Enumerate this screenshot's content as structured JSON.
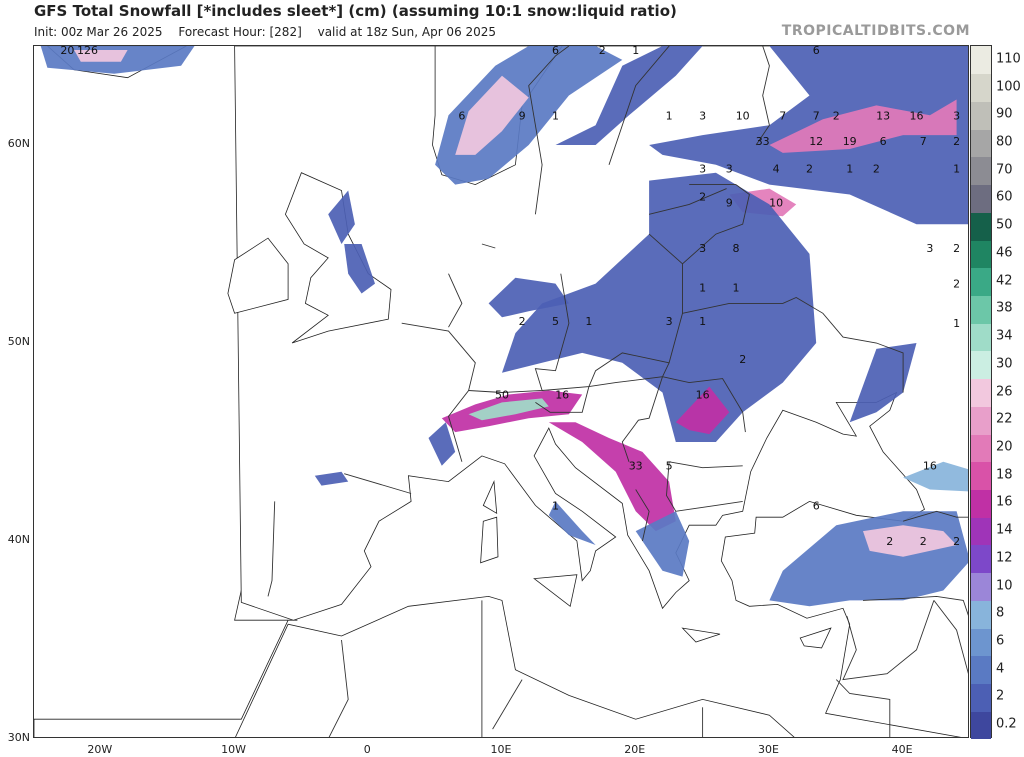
{
  "header": {
    "title": "GFS Total Snowfall [*includes sleet*] (cm) (assuming 10:1 snow:liquid ratio)",
    "init": "Init: 00z Mar 26 2025",
    "forecast_hour": "Forecast Hour: [282]",
    "valid": "valid at 18z Sun, Apr 06 2025",
    "watermark": "TROPICALTIDBITS.COM"
  },
  "map": {
    "lon_range": [
      -25,
      45
    ],
    "lat_range": [
      30,
      65
    ],
    "lat_ticks": [
      {
        "value": 30,
        "label": "30N"
      },
      {
        "value": 40,
        "label": "40N"
      },
      {
        "value": 50,
        "label": "50N"
      },
      {
        "value": 60,
        "label": "60N"
      }
    ],
    "lon_ticks": [
      {
        "value": -20,
        "label": "20W"
      },
      {
        "value": -10,
        "label": "10W"
      },
      {
        "value": 0,
        "label": "0"
      },
      {
        "value": 10,
        "label": "10E"
      },
      {
        "value": 20,
        "label": "20E"
      },
      {
        "value": 30,
        "label": "30E"
      },
      {
        "value": 40,
        "label": "40E"
      }
    ],
    "land_color": "#ffffff",
    "border_color": "#333333",
    "point_labels": [
      {
        "lon": -22.5,
        "lat": 64.6,
        "text": "20"
      },
      {
        "lon": -21.0,
        "lat": 64.6,
        "text": "126"
      },
      {
        "lon": 7.0,
        "lat": 61.3,
        "text": "6"
      },
      {
        "lon": 11.5,
        "lat": 61.3,
        "text": "9"
      },
      {
        "lon": 14.0,
        "lat": 61.3,
        "text": "1"
      },
      {
        "lon": 14.0,
        "lat": 64.6,
        "text": "6"
      },
      {
        "lon": 17.5,
        "lat": 64.6,
        "text": "2"
      },
      {
        "lon": 20.0,
        "lat": 64.6,
        "text": "1"
      },
      {
        "lon": 22.5,
        "lat": 61.3,
        "text": "1"
      },
      {
        "lon": 25.0,
        "lat": 61.3,
        "text": "3"
      },
      {
        "lon": 28.0,
        "lat": 61.3,
        "text": "10"
      },
      {
        "lon": 31.0,
        "lat": 61.3,
        "text": "7"
      },
      {
        "lon": 33.5,
        "lat": 61.3,
        "text": "7"
      },
      {
        "lon": 35.0,
        "lat": 61.3,
        "text": "2"
      },
      {
        "lon": 38.5,
        "lat": 61.3,
        "text": "13"
      },
      {
        "lon": 41.0,
        "lat": 61.3,
        "text": "16"
      },
      {
        "lon": 44.0,
        "lat": 61.3,
        "text": "3"
      },
      {
        "lon": 33.5,
        "lat": 64.6,
        "text": "6"
      },
      {
        "lon": 29.5,
        "lat": 60.0,
        "text": "33"
      },
      {
        "lon": 33.5,
        "lat": 60.0,
        "text": "12"
      },
      {
        "lon": 36.0,
        "lat": 60.0,
        "text": "19"
      },
      {
        "lon": 38.5,
        "lat": 60.0,
        "text": "6"
      },
      {
        "lon": 41.5,
        "lat": 60.0,
        "text": "7"
      },
      {
        "lon": 44.0,
        "lat": 60.0,
        "text": "2"
      },
      {
        "lon": 25.0,
        "lat": 58.6,
        "text": "3"
      },
      {
        "lon": 27.0,
        "lat": 58.6,
        "text": "3"
      },
      {
        "lon": 30.5,
        "lat": 58.6,
        "text": "4"
      },
      {
        "lon": 33.0,
        "lat": 58.6,
        "text": "2"
      },
      {
        "lon": 36.0,
        "lat": 58.6,
        "text": "1"
      },
      {
        "lon": 38.0,
        "lat": 58.6,
        "text": "2"
      },
      {
        "lon": 44.0,
        "lat": 58.6,
        "text": "1"
      },
      {
        "lon": 25.0,
        "lat": 57.2,
        "text": "2"
      },
      {
        "lon": 27.0,
        "lat": 56.9,
        "text": "9"
      },
      {
        "lon": 30.5,
        "lat": 56.9,
        "text": "10"
      },
      {
        "lon": 25.0,
        "lat": 54.6,
        "text": "3"
      },
      {
        "lon": 27.5,
        "lat": 54.6,
        "text": "8"
      },
      {
        "lon": 42.0,
        "lat": 54.6,
        "text": "3"
      },
      {
        "lon": 44.0,
        "lat": 54.6,
        "text": "2"
      },
      {
        "lon": 44.0,
        "lat": 52.8,
        "text": "2"
      },
      {
        "lon": 44.0,
        "lat": 50.8,
        "text": "1"
      },
      {
        "lon": 25.0,
        "lat": 52.6,
        "text": "1"
      },
      {
        "lon": 27.5,
        "lat": 52.6,
        "text": "1"
      },
      {
        "lon": 11.5,
        "lat": 50.9,
        "text": "2"
      },
      {
        "lon": 14.0,
        "lat": 50.9,
        "text": "5"
      },
      {
        "lon": 16.5,
        "lat": 50.9,
        "text": "1"
      },
      {
        "lon": 22.5,
        "lat": 50.9,
        "text": "3"
      },
      {
        "lon": 25.0,
        "lat": 50.9,
        "text": "1"
      },
      {
        "lon": 28.0,
        "lat": 49.0,
        "text": "2"
      },
      {
        "lon": 10.0,
        "lat": 47.2,
        "text": "50"
      },
      {
        "lon": 14.5,
        "lat": 47.2,
        "text": "16"
      },
      {
        "lon": 25.0,
        "lat": 47.2,
        "text": "16"
      },
      {
        "lon": 20.0,
        "lat": 43.6,
        "text": "33"
      },
      {
        "lon": 22.5,
        "lat": 43.6,
        "text": "5"
      },
      {
        "lon": 42.0,
        "lat": 43.6,
        "text": "16"
      },
      {
        "lon": 33.5,
        "lat": 41.6,
        "text": "6"
      },
      {
        "lon": 39.0,
        "lat": 39.8,
        "text": "2"
      },
      {
        "lon": 41.5,
        "lat": 39.8,
        "text": "2"
      },
      {
        "lon": 44.0,
        "lat": 39.8,
        "text": "2"
      },
      {
        "lon": 14.0,
        "lat": 41.6,
        "text": "1"
      }
    ],
    "snow_regions": [
      {
        "level": 2,
        "points": [
          [
            -24.5,
            65
          ],
          [
            -13,
            65
          ],
          [
            -14,
            64
          ],
          [
            -19,
            63.6
          ],
          [
            -24,
            63.9
          ]
        ]
      },
      {
        "level": 12,
        "points": [
          [
            -22,
            64.8
          ],
          [
            -18,
            64.8
          ],
          [
            -18.5,
            64.2
          ],
          [
            -21.5,
            64.2
          ]
        ]
      },
      {
        "level": 2,
        "points": [
          [
            5,
            59
          ],
          [
            6,
            61.5
          ],
          [
            9.5,
            64
          ],
          [
            12,
            65
          ],
          [
            17,
            65
          ],
          [
            19,
            64.3
          ],
          [
            15,
            62.5
          ],
          [
            12,
            60
          ],
          [
            9,
            58.3
          ],
          [
            6.5,
            58
          ]
        ]
      },
      {
        "level": 12,
        "points": [
          [
            6.5,
            59.5
          ],
          [
            7.5,
            61.7
          ],
          [
            10,
            63.5
          ],
          [
            12,
            62.4
          ],
          [
            10,
            60.7
          ],
          [
            8,
            59.5
          ]
        ]
      },
      {
        "level": 1,
        "points": [
          [
            14,
            60
          ],
          [
            17,
            61
          ],
          [
            19,
            64
          ],
          [
            22,
            65
          ],
          [
            25,
            65
          ],
          [
            23,
            63.5
          ],
          [
            19.5,
            61.5
          ],
          [
            17,
            60
          ]
        ]
      },
      {
        "level": 1,
        "points": [
          [
            21,
            60
          ],
          [
            25,
            60.5
          ],
          [
            30,
            61
          ],
          [
            33,
            62.5
          ],
          [
            30,
            65
          ],
          [
            36,
            65
          ],
          [
            45,
            65
          ],
          [
            45,
            56
          ],
          [
            41,
            56
          ],
          [
            36,
            57.5
          ],
          [
            30,
            58
          ],
          [
            26,
            59
          ],
          [
            22,
            59.5
          ]
        ]
      },
      {
        "level": 10,
        "points": [
          [
            30,
            60
          ],
          [
            34,
            61.3
          ],
          [
            38,
            62
          ],
          [
            42,
            61.5
          ],
          [
            44,
            62.3
          ],
          [
            44,
            60.5
          ],
          [
            40,
            60.5
          ],
          [
            36,
            59.8
          ],
          [
            31,
            59.6
          ]
        ]
      },
      {
        "level": 10,
        "points": [
          [
            27,
            57.5
          ],
          [
            30,
            57.8
          ],
          [
            32,
            57
          ],
          [
            31,
            56.4
          ],
          [
            28,
            56.6
          ]
        ]
      },
      {
        "level": 1,
        "points": [
          [
            21,
            58.2
          ],
          [
            26,
            58.6
          ],
          [
            30,
            57
          ],
          [
            33,
            54.5
          ],
          [
            33.5,
            50
          ],
          [
            31,
            48
          ],
          [
            28,
            46.5
          ],
          [
            26,
            45
          ],
          [
            23,
            45
          ],
          [
            22,
            47.5
          ],
          [
            19,
            49
          ],
          [
            16,
            49.5
          ],
          [
            13,
            49
          ],
          [
            10,
            48.5
          ],
          [
            11,
            50.5
          ],
          [
            13,
            52
          ],
          [
            17,
            53
          ],
          [
            21,
            55.5
          ]
        ]
      },
      {
        "level": 1,
        "points": [
          [
            9,
            52
          ],
          [
            11,
            53.3
          ],
          [
            14,
            53
          ],
          [
            15,
            52
          ],
          [
            12,
            51.6
          ],
          [
            10,
            51.3
          ]
        ]
      },
      {
        "level": 1,
        "points": [
          [
            -3,
            56.5
          ],
          [
            -1.5,
            57.7
          ],
          [
            -1,
            56
          ],
          [
            -2,
            55
          ]
        ]
      },
      {
        "level": 1,
        "points": [
          [
            -1.8,
            55
          ],
          [
            -0.5,
            55
          ],
          [
            0.5,
            53
          ],
          [
            -0.5,
            52.5
          ],
          [
            -1.5,
            53.5
          ]
        ]
      },
      {
        "level": 8,
        "points": [
          [
            5.5,
            46.2
          ],
          [
            8,
            46.9
          ],
          [
            10.5,
            47.4
          ],
          [
            13.5,
            47.6
          ],
          [
            16,
            47.4
          ],
          [
            15,
            46.4
          ],
          [
            12,
            46.2
          ],
          [
            9,
            45.8
          ],
          [
            6.5,
            45.5
          ]
        ]
      },
      {
        "level": 14,
        "points": [
          [
            7.5,
            46.4
          ],
          [
            10,
            47
          ],
          [
            13,
            47.2
          ],
          [
            13.5,
            46.8
          ],
          [
            11,
            46.4
          ],
          [
            8.5,
            46.1
          ]
        ]
      },
      {
        "level": 1,
        "points": [
          [
            4.5,
            45.2
          ],
          [
            5.8,
            46
          ],
          [
            6.5,
            44.5
          ],
          [
            5.5,
            43.8
          ]
        ]
      },
      {
        "level": 1,
        "points": [
          [
            -4,
            43.3
          ],
          [
            -2,
            43.5
          ],
          [
            -1.5,
            43.0
          ],
          [
            -3.5,
            42.8
          ]
        ]
      },
      {
        "level": 8,
        "points": [
          [
            13.5,
            46
          ],
          [
            16,
            45
          ],
          [
            18.5,
            43.5
          ],
          [
            20,
            41.5
          ],
          [
            21.5,
            40.5
          ],
          [
            23,
            41
          ],
          [
            22.5,
            43
          ],
          [
            20.5,
            44.5
          ],
          [
            18,
            45.2
          ],
          [
            15.5,
            46
          ]
        ]
      },
      {
        "level": 2,
        "points": [
          [
            20,
            40.5
          ],
          [
            22,
            38.5
          ],
          [
            23.5,
            38.2
          ],
          [
            24,
            40
          ],
          [
            23,
            41.5
          ]
        ]
      },
      {
        "level": 8,
        "points": [
          [
            23,
            46
          ],
          [
            25.5,
            47.8
          ],
          [
            27,
            46.5
          ],
          [
            25.5,
            45.4
          ],
          [
            24,
            45.6
          ]
        ]
      },
      {
        "level": 2,
        "points": [
          [
            14,
            42
          ],
          [
            16,
            40.5
          ],
          [
            17,
            39.8
          ],
          [
            15,
            40.3
          ],
          [
            13.5,
            41.3
          ]
        ]
      },
      {
        "level": 2,
        "points": [
          [
            31,
            38.5
          ],
          [
            35,
            40.8
          ],
          [
            40,
            41.5
          ],
          [
            44,
            41.5
          ],
          [
            45,
            39
          ],
          [
            43,
            37.5
          ],
          [
            40,
            37
          ],
          [
            36,
            37
          ],
          [
            33,
            36.7
          ],
          [
            30,
            37
          ]
        ]
      },
      {
        "level": 12,
        "points": [
          [
            37,
            40.5
          ],
          [
            40,
            40.8
          ],
          [
            43,
            40.5
          ],
          [
            44,
            39.8
          ],
          [
            40,
            39.2
          ],
          [
            37.5,
            39.5
          ]
        ]
      },
      {
        "level": 4,
        "points": [
          [
            40,
            43.2
          ],
          [
            43,
            44
          ],
          [
            45,
            43.6
          ],
          [
            45,
            42.5
          ],
          [
            42,
            42.6
          ]
        ]
      },
      {
        "level": 1,
        "points": [
          [
            36,
            46
          ],
          [
            38,
            49.7
          ],
          [
            41,
            50
          ],
          [
            40,
            47.5
          ],
          [
            38,
            46.5
          ]
        ]
      }
    ]
  },
  "colorbar": {
    "levels": [
      0.2,
      2,
      4,
      6,
      8,
      10,
      12,
      14,
      16,
      18,
      20,
      22,
      26,
      30,
      34,
      38,
      42,
      46,
      50,
      60,
      70,
      80,
      90,
      100,
      110
    ],
    "colors": [
      "#3e479e",
      "#4c5fb4",
      "#5a7ac3",
      "#6d95cf",
      "#88b4db",
      "#9b86d8",
      "#7d48c9",
      "#9f34b8",
      "#c030a5",
      "#d952a8",
      "#e27ab8",
      "#e89fca",
      "#f2c8de",
      "#cbeee2",
      "#9fdcc8",
      "#6cc7a8",
      "#3aa986",
      "#1f8562",
      "#15604a",
      "#6d6d80",
      "#8c8c93",
      "#a6a6a6",
      "#bfbfb8",
      "#d6d6cb",
      "#ebebe2"
    ]
  }
}
